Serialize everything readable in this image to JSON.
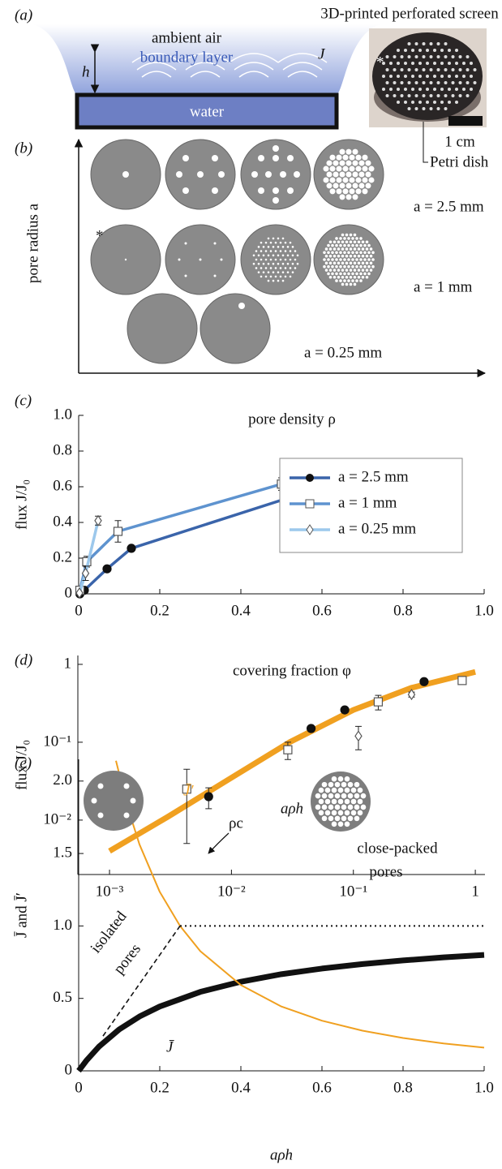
{
  "panel_a": {
    "label": "(a)",
    "photo_title": "3D-printed perforated screen",
    "ambient": "ambient air",
    "boundary": "boundary layer",
    "flux": "J",
    "height": "h",
    "water": "water",
    "asterisk": "*",
    "scale": "1 cm",
    "dish": "Petri dish"
  },
  "panel_b": {
    "label": "(b)",
    "y_label": "pore radius a",
    "asterisk": "*",
    "sizes": [
      "a = 2.5 mm",
      "a = 1 mm",
      "a = 0.25 mm"
    ]
  },
  "chart_data": [
    {
      "type": "line",
      "panel": "(c)",
      "title": "pore density ρ",
      "y_label": "flux J/J₀",
      "xlim": [
        0,
        1
      ],
      "xticks": [
        0,
        0.2,
        0.4,
        0.6,
        0.8,
        {
          "value": 1,
          "label": "1.0"
        }
      ],
      "ylim": [
        0,
        1
      ],
      "yticks": [
        0,
        0.2,
        0.4,
        0.6,
        0.8,
        {
          "value": 1,
          "label": "1.0"
        }
      ],
      "legend": "center right",
      "series": [
        {
          "name": "a = 2.5 mm",
          "color": "#3a64aa",
          "width": 3.5,
          "marker": "circle",
          "marker_color": "#111111",
          "x": [
            0.003,
            0.014,
            0.07,
            0.13,
            0.61
          ],
          "values": [
            0,
            0.02,
            0.14,
            0.255,
            0.605
          ],
          "errors": [
            null,
            null,
            null,
            null,
            0.015
          ]
        },
        {
          "name": "a = 1 mm",
          "color": "#5e93cf",
          "width": 3.5,
          "marker": "square",
          "marker_color": "#555555",
          "x": [
            0.003,
            0.02,
            0.097,
            0.5
          ],
          "values": [
            0.02,
            0.18,
            0.35,
            0.615
          ],
          "errors": [
            null,
            0.03,
            0.06,
            0.035
          ]
        },
        {
          "name": "a = 0.25 mm",
          "color": "#9cc8ec",
          "width": 3.5,
          "marker": "diamond",
          "marker_color": "#555555",
          "x": [
            0.002,
            0.017,
            0.048
          ],
          "values": [
            0.005,
            0.115,
            0.41
          ],
          "errors": [
            null,
            0.04,
            0.025
          ]
        }
      ]
    },
    {
      "type": "scatter",
      "panel": "(d)",
      "title": "covering fraction φ",
      "y_label": "flux J/J₀",
      "log_x": true,
      "log_y": true,
      "xlim": [
        0.00055,
        1.2
      ],
      "xticks": [
        {
          "value": 0.001,
          "label": "10⁻³"
        },
        {
          "value": 0.01,
          "label": "10⁻²"
        },
        {
          "value": 0.1,
          "label": "10⁻¹"
        },
        1
      ],
      "ylim": [
        0.002,
        1.3
      ],
      "yticks": [
        {
          "value": 0.01,
          "label": "10⁻²"
        },
        {
          "value": 0.1,
          "label": "10⁻¹"
        },
        1
      ],
      "series": [
        {
          "style": "line",
          "color": "#f0a020",
          "width": 7,
          "x": [
            0.001,
            0.003,
            0.01,
            0.03,
            0.1,
            0.3,
            1
          ],
          "values": [
            0.004,
            0.011,
            0.035,
            0.1,
            0.26,
            0.5,
            0.8
          ]
        },
        {
          "style": "markers",
          "marker": "circle",
          "marker_color": "#111111",
          "x": [
            0.0065,
            0.045,
            0.085,
            0.38
          ],
          "values": [
            0.02,
            0.15,
            0.26,
            0.6
          ],
          "errors": [
            0.006,
            null,
            null,
            null
          ]
        },
        {
          "style": "markers",
          "marker": "square",
          "marker_color": "#555555",
          "x": [
            0.0043,
            0.029,
            0.16,
            0.78
          ],
          "values": [
            0.025,
            0.08,
            0.33,
            0.62
          ],
          "errors": [
            0.02,
            0.02,
            0.07,
            0.06
          ]
        },
        {
          "style": "markers",
          "marker": "diamond",
          "marker_color": "#555555",
          "x": [
            0.11,
            0.3
          ],
          "values": [
            0.12,
            0.41
          ],
          "errors": [
            0.04,
            0.03
          ]
        }
      ]
    },
    {
      "type": "line",
      "panel": "(e)",
      "top_label": "aρh",
      "x_label": "aρh",
      "y_label": "J̄ and J̄′",
      "xlim": [
        0,
        1
      ],
      "xticks": [
        0,
        0.2,
        0.4,
        0.6,
        0.8,
        {
          "value": 1,
          "label": "1.0"
        }
      ],
      "ylim": [
        0,
        2.15
      ],
      "yticks": [
        0,
        0.5,
        {
          "value": 1,
          "label": "1.0"
        },
        1.5,
        {
          "value": 2,
          "label": "2.0"
        }
      ],
      "series": [
        {
          "name": "J̄",
          "color": "#111111",
          "width": 7,
          "x": [
            0,
            0.02,
            0.05,
            0.1,
            0.15,
            0.2,
            0.3,
            0.4,
            0.5,
            0.6,
            0.7,
            0.8,
            0.9,
            1
          ],
          "values": [
            0,
            0.074,
            0.167,
            0.286,
            0.375,
            0.444,
            0.545,
            0.615,
            0.667,
            0.706,
            0.737,
            0.762,
            0.783,
            0.8
          ]
        },
        {
          "name": "J̄′",
          "color": "#f0a020",
          "width": 2,
          "x": [
            0.092,
            0.12,
            0.15,
            0.2,
            0.25,
            0.3,
            0.4,
            0.5,
            0.6,
            0.7,
            0.8,
            0.9,
            1
          ],
          "values": [
            2.14,
            1.826,
            1.5625,
            1.235,
            1,
            0.826,
            0.592,
            0.444,
            0.346,
            0.277,
            0.227,
            0.189,
            0.16
          ]
        },
        {
          "color": "#111111",
          "width": 1.6,
          "dash": "6 4",
          "x": [
            0.06,
            0.25
          ],
          "values": [
            0.24,
            1
          ]
        },
        {
          "color": "#111111",
          "width": 2,
          "dash": "2 4",
          "x": [
            0.25,
            1
          ],
          "values": [
            1,
            1
          ]
        }
      ],
      "annotations": [
        "ρc",
        "isolated",
        "pores",
        "close-packed",
        "pores"
      ]
    }
  ]
}
